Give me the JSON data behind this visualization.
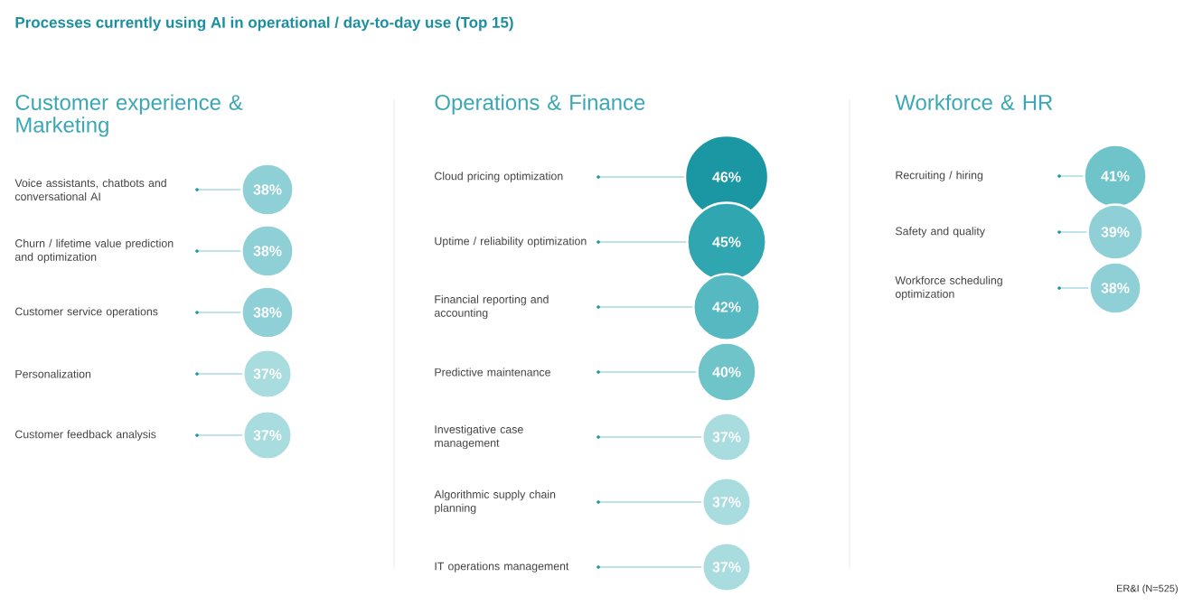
{
  "chart_data": [
    {
      "type": "other",
      "title": "Processes currently using AI in operational / day-to-day use (Top 15)",
      "subtitle": "Customer experience & Marketing",
      "categories": [
        "Voice assistants, chatbots and conversational AI",
        "Churn / lifetime value prediction and optimization",
        "Customer service operations",
        "Personalization",
        "Customer feedback analysis"
      ],
      "values": [
        38,
        38,
        38,
        37,
        37
      ],
      "value_labels": [
        "38%",
        "38%",
        "38%",
        "37%",
        "37%"
      ],
      "colors": [
        "#8fd0d6",
        "#8fd0d6",
        "#8fd0d6",
        "#a9dcdf",
        "#a9dcdf"
      ]
    },
    {
      "type": "other",
      "subtitle": "Operations & Finance",
      "categories": [
        "Cloud pricing optimization",
        "Uptime / reliability optimization",
        "Financial reporting and accounting",
        "Predictive maintenance",
        "Investigative case management",
        "Algorithmic supply chain planning",
        "IT operations management"
      ],
      "values": [
        46,
        45,
        42,
        40,
        37,
        37,
        37
      ],
      "value_labels": [
        "46%",
        "45%",
        "42%",
        "40%",
        "37%",
        "37%",
        "37%"
      ],
      "colors": [
        "#1b96a3",
        "#30a6b1",
        "#56b8c0",
        "#6fc4ca",
        "#a9dcdf",
        "#a9dcdf",
        "#a9dcdf"
      ]
    },
    {
      "type": "other",
      "subtitle": "Workforce & HR",
      "categories": [
        "Recruiting / hiring",
        "Safety and quality",
        "Workforce scheduling optimization"
      ],
      "values": [
        41,
        39,
        38
      ],
      "value_labels": [
        "41%",
        "39%",
        "38%"
      ],
      "colors": [
        "#6fc4ca",
        "#8fd0d6",
        "#8fd0d6"
      ],
      "annotations": [
        "ER&I (N=525)"
      ]
    }
  ]
}
